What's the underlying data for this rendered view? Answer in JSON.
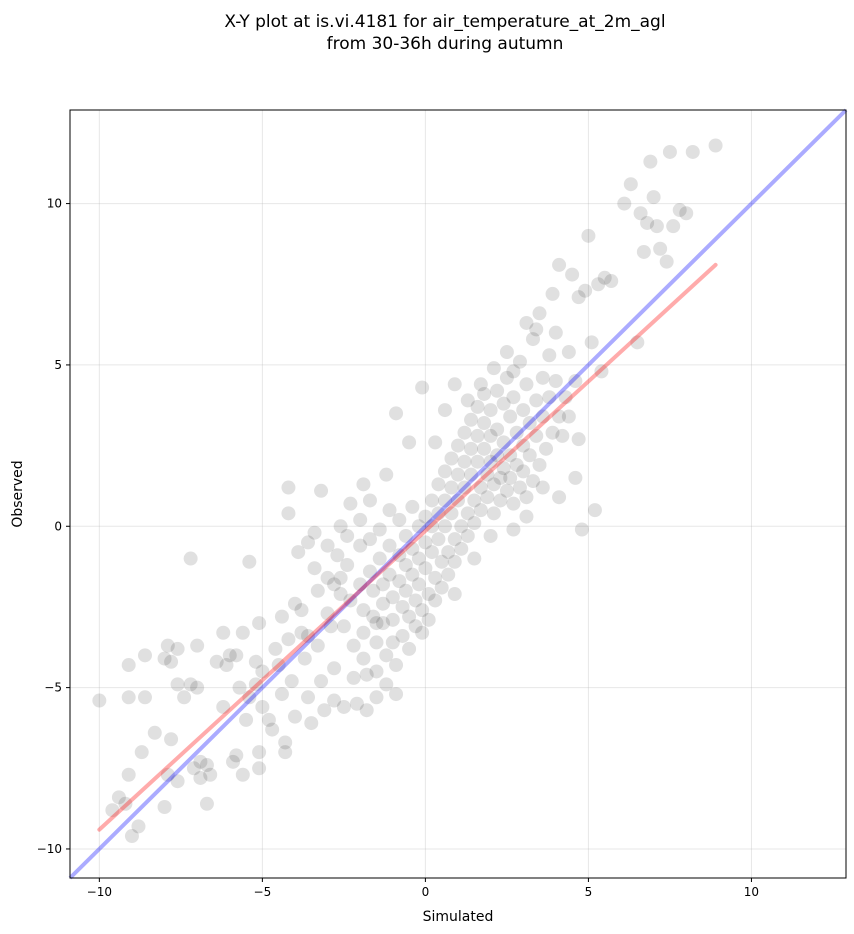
{
  "chart_data": {
    "type": "scatter",
    "title": "X-Y plot at is.vi.4181 for air_temperature_at_2m_agl",
    "subtitle": "from 30-36h during autumn",
    "xlabel": "Simulated",
    "ylabel": "Observed",
    "xlim": [
      -10.9,
      12.9
    ],
    "ylim": [
      -10.9,
      12.9
    ],
    "xticks": [
      -10,
      -5,
      0,
      5,
      10
    ],
    "yticks": [
      -10,
      -5,
      0,
      5,
      10
    ],
    "xtick_labels": [
      "−10",
      "−5",
      "0",
      "5",
      "10"
    ],
    "ytick_labels": [
      "−10",
      "−5",
      "0",
      "5",
      "10"
    ],
    "grid": true,
    "point_color": "#000000",
    "point_alpha": 0.12,
    "identity_line": {
      "x": [
        -10.9,
        12.9
      ],
      "y": [
        -10.9,
        12.9
      ],
      "color": "#0000ff",
      "alpha": 0.33
    },
    "fit_line": {
      "x": [
        -10.0,
        8.9
      ],
      "y": [
        -9.4,
        8.1
      ],
      "color": "#ff0000",
      "alpha": 0.33
    },
    "points": [
      [
        -10.0,
        -5.4
      ],
      [
        -9.6,
        -8.8
      ],
      [
        -9.4,
        -8.4
      ],
      [
        -9.2,
        -8.6
      ],
      [
        -9.1,
        -7.7
      ],
      [
        -9.0,
        -9.6
      ],
      [
        -8.8,
        -9.3
      ],
      [
        -9.1,
        -4.3
      ],
      [
        -9.1,
        -5.3
      ],
      [
        -8.6,
        -4.0
      ],
      [
        -8.6,
        -5.3
      ],
      [
        -8.7,
        -7.0
      ],
      [
        -8.3,
        -6.4
      ],
      [
        -8.0,
        -8.7
      ],
      [
        -8.0,
        -4.1
      ],
      [
        -7.9,
        -3.7
      ],
      [
        -7.8,
        -4.2
      ],
      [
        -7.8,
        -6.6
      ],
      [
        -7.9,
        -7.7
      ],
      [
        -7.6,
        -7.9
      ],
      [
        -7.6,
        -3.8
      ],
      [
        -7.6,
        -4.9
      ],
      [
        -7.4,
        -5.3
      ],
      [
        -7.2,
        -4.9
      ],
      [
        -7.0,
        -5.0
      ],
      [
        -7.1,
        -7.5
      ],
      [
        -7.2,
        -1.0
      ],
      [
        -7.0,
        -3.7
      ],
      [
        -6.9,
        -7.3
      ],
      [
        -6.9,
        -7.8
      ],
      [
        -6.7,
        -8.6
      ],
      [
        -6.7,
        -7.4
      ],
      [
        -6.6,
        -7.7
      ],
      [
        -6.4,
        -4.2
      ],
      [
        -6.2,
        -5.6
      ],
      [
        -6.2,
        -3.3
      ],
      [
        -6.1,
        -4.3
      ],
      [
        -6.0,
        -4.0
      ],
      [
        -5.9,
        -7.3
      ],
      [
        -5.8,
        -7.1
      ],
      [
        -5.8,
        -4.0
      ],
      [
        -5.7,
        -5.0
      ],
      [
        -5.6,
        -3.3
      ],
      [
        -5.6,
        -7.7
      ],
      [
        -5.5,
        -6.0
      ],
      [
        -5.4,
        -5.3
      ],
      [
        -5.4,
        -1.1
      ],
      [
        -5.2,
        -4.2
      ],
      [
        -5.2,
        -4.9
      ],
      [
        -5.1,
        -3.0
      ],
      [
        -5.1,
        -7.0
      ],
      [
        -5.1,
        -7.5
      ],
      [
        -5.0,
        -4.5
      ],
      [
        -5.0,
        -5.6
      ],
      [
        -4.8,
        -6.0
      ],
      [
        -4.7,
        -6.3
      ],
      [
        -4.6,
        -3.8
      ],
      [
        -4.5,
        -4.3
      ],
      [
        -4.4,
        -2.8
      ],
      [
        -4.4,
        -5.2
      ],
      [
        -4.3,
        -6.7
      ],
      [
        -4.3,
        -7.0
      ],
      [
        -4.2,
        1.2
      ],
      [
        -4.2,
        -3.5
      ],
      [
        -4.1,
        -4.8
      ],
      [
        -4.0,
        -2.4
      ],
      [
        -4.0,
        -5.9
      ],
      [
        -3.9,
        -0.8
      ],
      [
        -3.8,
        -2.6
      ],
      [
        -3.8,
        -3.3
      ],
      [
        -3.7,
        -4.1
      ],
      [
        -3.6,
        -5.3
      ],
      [
        -3.6,
        -3.4
      ],
      [
        -3.5,
        -6.1
      ],
      [
        -3.4,
        -0.2
      ],
      [
        -3.4,
        -1.3
      ],
      [
        -3.3,
        -2.0
      ],
      [
        -3.3,
        -3.7
      ],
      [
        -3.2,
        -4.8
      ],
      [
        -3.1,
        -5.7
      ],
      [
        -3.0,
        -0.6
      ],
      [
        -3.0,
        -1.6
      ],
      [
        -3.0,
        -2.7
      ],
      [
        -2.9,
        -3.1
      ],
      [
        -2.8,
        -4.4
      ],
      [
        -2.8,
        -5.4
      ],
      [
        -2.7,
        -0.9
      ],
      [
        -2.6,
        -1.6
      ],
      [
        -2.6,
        -2.1
      ],
      [
        -2.5,
        -3.1
      ],
      [
        -2.5,
        -5.6
      ],
      [
        -2.4,
        -0.3
      ],
      [
        -2.4,
        -1.2
      ],
      [
        -2.3,
        -2.3
      ],
      [
        -2.2,
        -3.7
      ],
      [
        -2.2,
        -4.7
      ],
      [
        -2.1,
        -5.5
      ],
      [
        -2.0,
        0.2
      ],
      [
        -2.0,
        -0.6
      ],
      [
        -2.0,
        -1.8
      ],
      [
        -1.9,
        -2.6
      ],
      [
        -1.9,
        -3.3
      ],
      [
        -1.9,
        -4.1
      ],
      [
        -1.8,
        -4.6
      ],
      [
        -1.8,
        -5.7
      ],
      [
        -1.7,
        0.8
      ],
      [
        -1.7,
        -0.4
      ],
      [
        -1.7,
        -1.4
      ],
      [
        -1.6,
        -2.0
      ],
      [
        -1.6,
        -2.8
      ],
      [
        -1.5,
        -3.6
      ],
      [
        -1.5,
        -4.5
      ],
      [
        -1.5,
        -5.3
      ],
      [
        -1.4,
        -0.1
      ],
      [
        -1.4,
        -1.0
      ],
      [
        -1.3,
        -1.8
      ],
      [
        -1.3,
        -2.4
      ],
      [
        -1.3,
        -3.0
      ],
      [
        -1.2,
        -4.0
      ],
      [
        -1.2,
        -4.9
      ],
      [
        -1.1,
        0.5
      ],
      [
        -1.1,
        -0.6
      ],
      [
        -1.1,
        -1.5
      ],
      [
        -1.0,
        -2.2
      ],
      [
        -1.0,
        -2.9
      ],
      [
        -1.0,
        -3.6
      ],
      [
        -0.9,
        -4.3
      ],
      [
        -0.9,
        -5.2
      ],
      [
        -0.8,
        0.2
      ],
      [
        -0.8,
        -0.9
      ],
      [
        -0.8,
        -1.7
      ],
      [
        -0.7,
        -2.5
      ],
      [
        -0.7,
        -3.4
      ],
      [
        -0.6,
        -0.3
      ],
      [
        -0.6,
        -1.2
      ],
      [
        -0.6,
        -2.0
      ],
      [
        -0.5,
        -2.8
      ],
      [
        -0.5,
        -3.8
      ],
      [
        -0.4,
        0.6
      ],
      [
        -0.4,
        -0.7
      ],
      [
        -0.4,
        -1.5
      ],
      [
        -0.3,
        -2.3
      ],
      [
        -0.3,
        -3.1
      ],
      [
        -0.2,
        0.0
      ],
      [
        -0.2,
        -1.0
      ],
      [
        -0.2,
        -1.8
      ],
      [
        -0.1,
        -2.6
      ],
      [
        -0.1,
        -3.3
      ],
      [
        0.0,
        0.3
      ],
      [
        0.0,
        -0.5
      ],
      [
        0.0,
        -1.3
      ],
      [
        0.1,
        -2.1
      ],
      [
        0.1,
        -2.9
      ],
      [
        0.2,
        0.8
      ],
      [
        0.2,
        0.0
      ],
      [
        0.2,
        -0.8
      ],
      [
        0.3,
        -1.6
      ],
      [
        0.3,
        -2.3
      ],
      [
        0.4,
        1.3
      ],
      [
        0.4,
        0.4
      ],
      [
        0.4,
        -0.4
      ],
      [
        0.5,
        -1.1
      ],
      [
        0.5,
        -1.9
      ],
      [
        0.6,
        1.7
      ],
      [
        0.6,
        0.8
      ],
      [
        0.6,
        0.0
      ],
      [
        0.7,
        -0.8
      ],
      [
        0.7,
        -1.5
      ],
      [
        0.8,
        2.1
      ],
      [
        0.8,
        1.2
      ],
      [
        0.8,
        0.4
      ],
      [
        0.9,
        -0.4
      ],
      [
        0.9,
        -1.1
      ],
      [
        1.0,
        2.5
      ],
      [
        1.0,
        1.6
      ],
      [
        1.0,
        0.8
      ],
      [
        1.1,
        0.0
      ],
      [
        1.1,
        -0.7
      ],
      [
        1.2,
        2.9
      ],
      [
        1.2,
        2.0
      ],
      [
        1.2,
        1.2
      ],
      [
        1.3,
        0.4
      ],
      [
        1.3,
        -0.3
      ],
      [
        1.4,
        3.3
      ],
      [
        1.4,
        2.4
      ],
      [
        1.4,
        1.6
      ],
      [
        1.5,
        0.8
      ],
      [
        1.5,
        0.1
      ],
      [
        1.6,
        3.7
      ],
      [
        1.6,
        2.8
      ],
      [
        1.6,
        2.0
      ],
      [
        1.7,
        1.2
      ],
      [
        1.7,
        0.5
      ],
      [
        1.8,
        4.1
      ],
      [
        1.8,
        3.2
      ],
      [
        1.8,
        2.4
      ],
      [
        1.9,
        1.6
      ],
      [
        1.9,
        0.9
      ],
      [
        2.0,
        3.6
      ],
      [
        2.0,
        2.8
      ],
      [
        2.0,
        2.0
      ],
      [
        2.1,
        1.3
      ],
      [
        2.1,
        0.4
      ],
      [
        2.2,
        4.2
      ],
      [
        2.2,
        3.0
      ],
      [
        2.2,
        2.2
      ],
      [
        2.3,
        1.5
      ],
      [
        2.3,
        0.8
      ],
      [
        2.4,
        3.8
      ],
      [
        2.4,
        2.6
      ],
      [
        2.4,
        1.8
      ],
      [
        2.5,
        1.1
      ],
      [
        2.5,
        4.6
      ],
      [
        2.6,
        3.4
      ],
      [
        2.6,
        2.2
      ],
      [
        2.6,
        1.5
      ],
      [
        2.7,
        0.7
      ],
      [
        2.7,
        4.0
      ],
      [
        2.8,
        2.9
      ],
      [
        2.8,
        1.9
      ],
      [
        2.9,
        1.2
      ],
      [
        2.9,
        5.1
      ],
      [
        3.0,
        3.6
      ],
      [
        3.0,
        2.5
      ],
      [
        3.0,
        1.7
      ],
      [
        3.1,
        0.9
      ],
      [
        3.1,
        4.4
      ],
      [
        3.2,
        3.2
      ],
      [
        3.2,
        2.2
      ],
      [
        3.3,
        1.4
      ],
      [
        3.3,
        5.8
      ],
      [
        3.4,
        3.9
      ],
      [
        3.4,
        2.8
      ],
      [
        3.5,
        1.9
      ],
      [
        3.5,
        6.6
      ],
      [
        3.6,
        4.6
      ],
      [
        3.6,
        3.4
      ],
      [
        3.7,
        2.4
      ],
      [
        3.8,
        5.3
      ],
      [
        3.8,
        4.0
      ],
      [
        3.9,
        2.9
      ],
      [
        3.9,
        7.2
      ],
      [
        4.0,
        6.0
      ],
      [
        4.0,
        4.5
      ],
      [
        4.1,
        3.4
      ],
      [
        4.1,
        8.1
      ],
      [
        4.2,
        2.8
      ],
      [
        4.3,
        4.0
      ],
      [
        4.4,
        5.4
      ],
      [
        4.4,
        3.4
      ],
      [
        4.5,
        7.8
      ],
      [
        4.6,
        4.5
      ],
      [
        4.7,
        2.7
      ],
      [
        4.7,
        7.1
      ],
      [
        4.8,
        -0.1
      ],
      [
        4.9,
        7.3
      ],
      [
        5.0,
        9.0
      ],
      [
        5.1,
        5.7
      ],
      [
        5.2,
        0.5
      ],
      [
        5.3,
        7.5
      ],
      [
        5.4,
        4.8
      ],
      [
        5.5,
        7.7
      ],
      [
        5.7,
        7.6
      ],
      [
        6.1,
        10.0
      ],
      [
        6.3,
        10.6
      ],
      [
        6.5,
        5.7
      ],
      [
        6.6,
        9.7
      ],
      [
        6.7,
        8.5
      ],
      [
        6.8,
        9.4
      ],
      [
        6.9,
        11.3
      ],
      [
        7.0,
        10.2
      ],
      [
        7.1,
        9.3
      ],
      [
        7.2,
        8.6
      ],
      [
        7.4,
        8.2
      ],
      [
        7.5,
        11.6
      ],
      [
        7.6,
        9.3
      ],
      [
        7.8,
        9.8
      ],
      [
        8.0,
        9.7
      ],
      [
        8.2,
        11.6
      ],
      [
        8.9,
        11.8
      ],
      [
        -4.2,
        0.4
      ],
      [
        -3.6,
        -0.5
      ],
      [
        -3.2,
        1.1
      ],
      [
        -2.6,
        0.0
      ],
      [
        -2.3,
        0.7
      ],
      [
        -1.9,
        1.3
      ],
      [
        -1.2,
        1.6
      ],
      [
        -0.9,
        3.5
      ],
      [
        -0.5,
        2.6
      ],
      [
        -0.1,
        4.3
      ],
      [
        0.3,
        2.6
      ],
      [
        0.6,
        3.6
      ],
      [
        0.9,
        4.4
      ],
      [
        1.3,
        3.9
      ],
      [
        1.7,
        4.4
      ],
      [
        2.1,
        4.9
      ],
      [
        2.5,
        5.4
      ],
      [
        2.7,
        4.8
      ],
      [
        3.1,
        6.3
      ],
      [
        3.4,
        6.1
      ],
      [
        0.9,
        -2.1
      ],
      [
        1.5,
        -1.0
      ],
      [
        2.0,
        -0.3
      ],
      [
        2.7,
        -0.1
      ],
      [
        3.1,
        0.3
      ],
      [
        3.6,
        1.2
      ],
      [
        4.1,
        0.9
      ],
      [
        4.6,
        1.5
      ],
      [
        -2.8,
        -1.8
      ],
      [
        -1.5,
        -3.0
      ]
    ]
  }
}
